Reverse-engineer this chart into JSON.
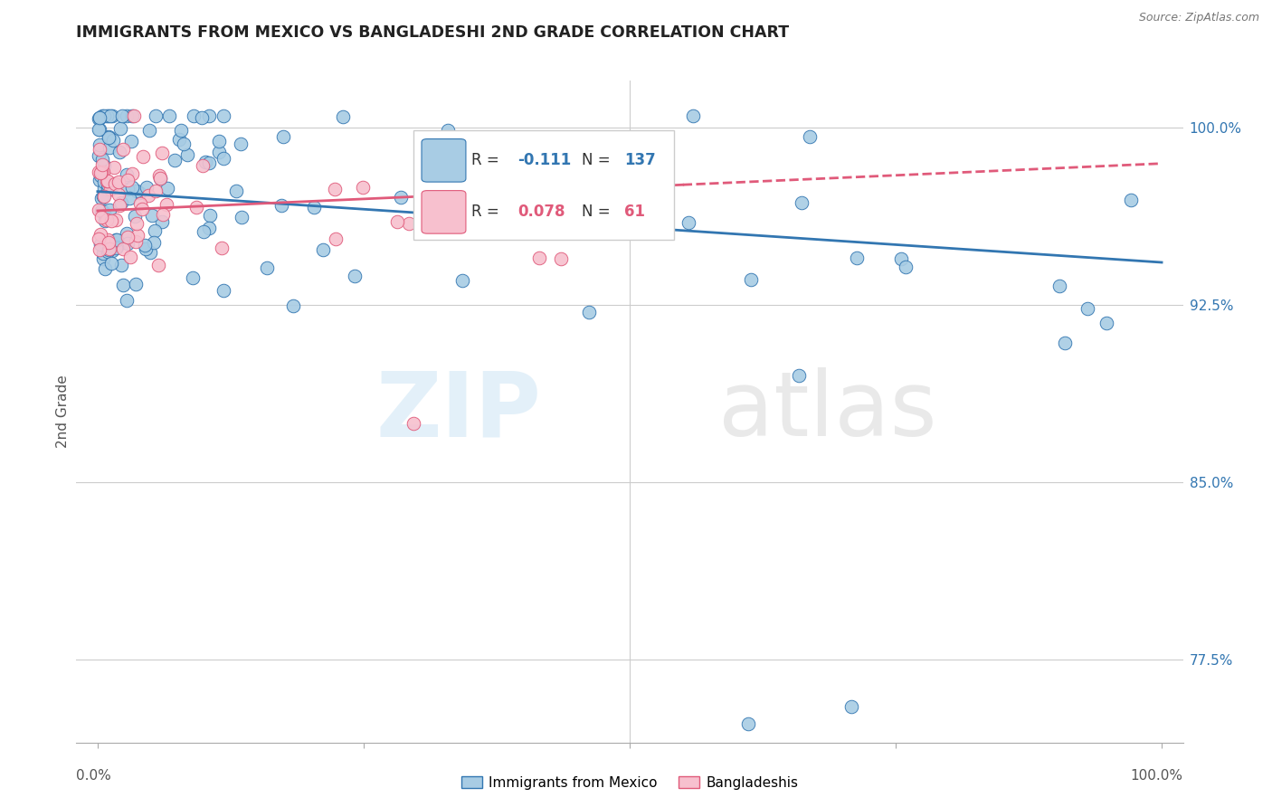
{
  "title": "IMMIGRANTS FROM MEXICO VS BANGLADESHI 2ND GRADE CORRELATION CHART",
  "source": "Source: ZipAtlas.com",
  "ylabel": "2nd Grade",
  "ymin": 74.0,
  "ymax": 102.0,
  "xmin": -0.02,
  "xmax": 1.02,
  "blue_color": "#a8cce4",
  "pink_color": "#f7c0ce",
  "blue_line_color": "#3276b1",
  "pink_line_color": "#e05a7a",
  "legend_R_blue": "-0.111",
  "legend_N_blue": "137",
  "legend_R_pink": "0.078",
  "legend_N_pink": "61",
  "legend_color_blue": "#3276b1",
  "legend_color_pink": "#e05a7a",
  "right_yticks": [
    77.5,
    85.0,
    92.5,
    100.0
  ],
  "right_ytick_labels": [
    "77.5%",
    "85.0%",
    "92.5%",
    "100.0%"
  ]
}
